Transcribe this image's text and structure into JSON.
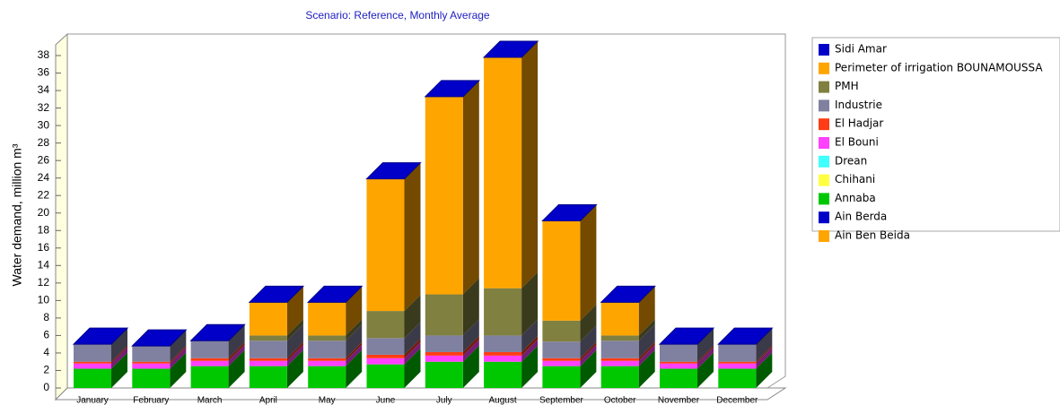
{
  "chart_data": {
    "type": "bar3d",
    "stacked": true,
    "title": "Scenario: Reference,  Monthly Average",
    "y_label": "Water demand, million m³",
    "categories": [
      "January",
      "February",
      "March",
      "April",
      "May",
      "June",
      "July",
      "August",
      "September",
      "October",
      "November",
      "December"
    ],
    "ylim": [
      0,
      38
    ],
    "yticks": [
      0,
      2,
      4,
      6,
      8,
      10,
      12,
      14,
      16,
      18,
      20,
      22,
      24,
      26,
      28,
      30,
      32,
      34,
      36,
      38
    ],
    "series": [
      {
        "name": "Ain Ben Beida",
        "color": "#ffa500",
        "values": [
          0,
          0,
          0,
          0,
          0,
          0,
          0,
          0,
          0,
          0,
          0,
          0
        ]
      },
      {
        "name": "Ain Berda",
        "color": "#0000c8",
        "values": [
          0,
          0,
          0,
          0,
          0,
          0,
          0,
          0,
          0,
          0,
          0,
          0
        ]
      },
      {
        "name": "Annaba",
        "color": "#00c800",
        "values": [
          2.2,
          2.2,
          2.5,
          2.5,
          2.5,
          2.7,
          3.0,
          3.0,
          2.5,
          2.5,
          2.2,
          2.2
        ]
      },
      {
        "name": "Chihani",
        "color": "#ffff40",
        "values": [
          0,
          0,
          0,
          0,
          0,
          0,
          0,
          0,
          0,
          0,
          0,
          0
        ]
      },
      {
        "name": "Drean",
        "color": "#40ffff",
        "values": [
          0,
          0,
          0,
          0,
          0,
          0,
          0,
          0,
          0,
          0,
          0,
          0
        ]
      },
      {
        "name": "El Bouni",
        "color": "#ff40ff",
        "values": [
          0.6,
          0.6,
          0.6,
          0.6,
          0.6,
          0.7,
          0.7,
          0.7,
          0.6,
          0.6,
          0.6,
          0.6
        ]
      },
      {
        "name": "El Hadjar",
        "color": "#ff3c14",
        "values": [
          0.2,
          0.2,
          0.3,
          0.3,
          0.3,
          0.4,
          0.4,
          0.4,
          0.3,
          0.3,
          0.2,
          0.2
        ]
      },
      {
        "name": "Industrie",
        "color": "#8080a0",
        "values": [
          2.0,
          1.8,
          2.0,
          2.0,
          2.0,
          1.9,
          1.9,
          1.9,
          1.9,
          2.0,
          2.0,
          2.0
        ]
      },
      {
        "name": "PMH",
        "color": "#808040",
        "values": [
          0,
          0,
          0,
          0.6,
          0.6,
          3.1,
          4.7,
          5.4,
          2.4,
          0.6,
          0,
          0
        ]
      },
      {
        "name": "Perimeter of irrigation BOUNAMOUSSA",
        "color": "#ffa500",
        "values": [
          0,
          0,
          0,
          3.8,
          3.8,
          15.1,
          22.6,
          26.4,
          11.4,
          3.8,
          0,
          0
        ]
      },
      {
        "name": "Sidi Amar",
        "color": "#0000c8",
        "values": [
          0,
          0,
          0,
          0,
          0,
          0,
          0,
          0,
          0,
          0,
          0,
          0
        ]
      }
    ]
  }
}
